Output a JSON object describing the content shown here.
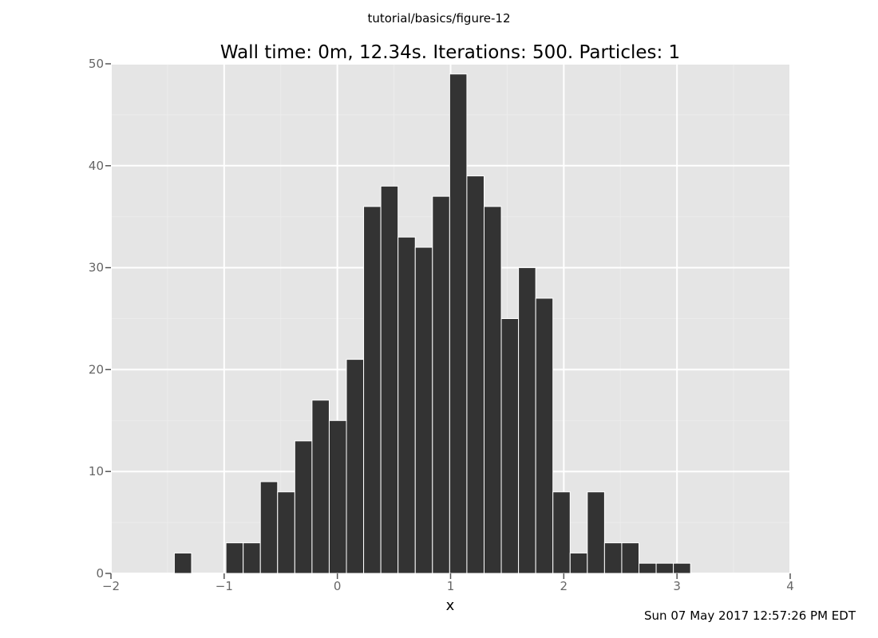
{
  "figure": {
    "suptitle": "tutorial/basics/figure-12",
    "timestamp": "Sun 07 May 2017 12:57:26 PM EDT"
  },
  "colors": {
    "panel_background": "#e5e5e5",
    "grid_major": "#ffffff",
    "grid_minor": "#ececec",
    "bar_fill": "#333333",
    "bar_edge": "#ffffff",
    "tick_label": "#666666"
  },
  "chart_data": {
    "type": "bar",
    "title": "Wall time: 0m, 12.34s. Iterations: 500. Particles: 1",
    "xlabel": "x",
    "ylabel": "",
    "xlim": [
      -2,
      4
    ],
    "ylim": [
      0,
      50
    ],
    "xticks": [
      -2,
      -1,
      0,
      1,
      2,
      3,
      4
    ],
    "yticks": [
      0,
      10,
      20,
      30,
      40,
      50
    ],
    "xtick_labels": [
      "−2",
      "−1",
      "0",
      "1",
      "2",
      "3",
      "4"
    ],
    "ytick_labels": [
      "0",
      "10",
      "20",
      "30",
      "40",
      "50"
    ],
    "grid": true,
    "legend": "none",
    "bin_width": 0.152,
    "bin_start": -1.44,
    "counts": [
      2,
      0,
      0,
      3,
      3,
      9,
      8,
      13,
      17,
      15,
      21,
      36,
      38,
      33,
      32,
      37,
      49,
      39,
      36,
      25,
      30,
      27,
      8,
      2,
      8,
      3,
      3,
      1,
      1,
      1
    ]
  }
}
